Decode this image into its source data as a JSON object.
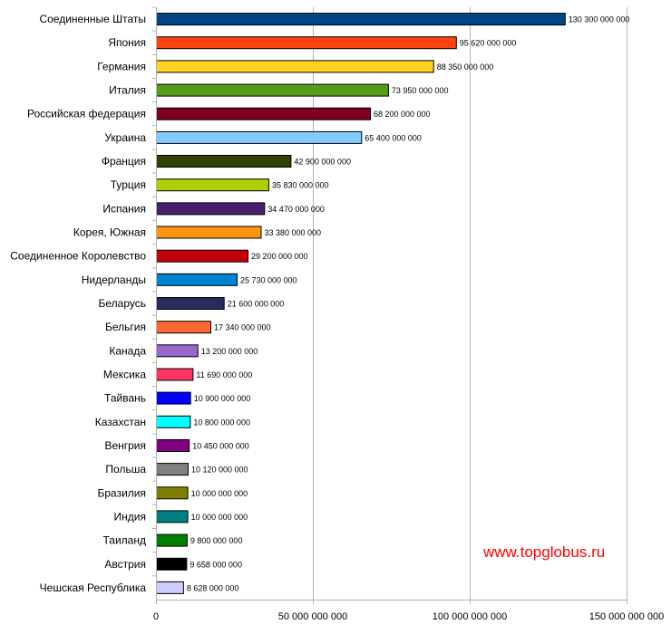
{
  "chart_data": {
    "type": "bar",
    "orientation": "horizontal",
    "categories": [
      "Соединенные Штаты",
      "Япония",
      "Германия",
      "Италия",
      "Российская федерация",
      "Украина",
      "Франция",
      "Турция",
      "Испания",
      "Корея, Южная",
      "Соединенное Королевство",
      "Нидерланды",
      "Беларусь",
      "Бельгия",
      "Канада",
      "Мексика",
      "Тайвань",
      "Казахстан",
      "Венгрия",
      "Польша",
      "Бразилия",
      "Индия",
      "Таиланд",
      "Австрия",
      "Чешская Республика"
    ],
    "values": [
      130300000000,
      95620000000,
      88350000000,
      73950000000,
      68200000000,
      65400000000,
      42900000000,
      35830000000,
      34470000000,
      33380000000,
      29200000000,
      25730000000,
      21600000000,
      17340000000,
      13200000000,
      11690000000,
      10900000000,
      10800000000,
      10450000000,
      10120000000,
      10000000000,
      10000000000,
      9800000000,
      9658000000,
      8628000000
    ],
    "value_labels": [
      "130 300 000 000",
      "95 620 000 000",
      "88 350 000 000",
      "73 950 000 000",
      "68 200 000 000",
      "65 400 000 000",
      "42 900 000 000",
      "35 830 000 000",
      "34 470 000 000",
      "33 380 000 000",
      "29 200 000 000",
      "25 730 000 000",
      "21 600 000 000",
      "17 340 000 000",
      "13 200 000 000",
      "11 690 000 000",
      "10 900 000 000",
      "10 800 000 000",
      "10 450 000 000",
      "10 120 000 000",
      "10 000 000 000",
      "10 000 000 000",
      "9 800 000 000",
      "9 658 000 000",
      "8 628 000 000"
    ],
    "colors": [
      "#004586",
      "#ff420e",
      "#ffd320",
      "#579d1c",
      "#7e0021",
      "#83caff",
      "#314004",
      "#aecf00",
      "#4b1f6f",
      "#ff950e",
      "#c5000b",
      "#0084d1",
      "#2a2a5c",
      "#ff6633",
      "#9966cc",
      "#ff3366",
      "#0000ff",
      "#00ffff",
      "#800080",
      "#808080",
      "#808000",
      "#008080",
      "#008000",
      "#000000",
      "#ccccff"
    ],
    "xlim": [
      0,
      150000000000
    ],
    "x_ticks": [
      0,
      50000000000,
      100000000000,
      150000000000
    ],
    "x_tick_labels": [
      "0",
      "50 000 000 000",
      "100 000 000 000",
      "150 000 000 000"
    ],
    "grid": true,
    "legend": "none"
  },
  "watermark": "www.topglobus.ru"
}
